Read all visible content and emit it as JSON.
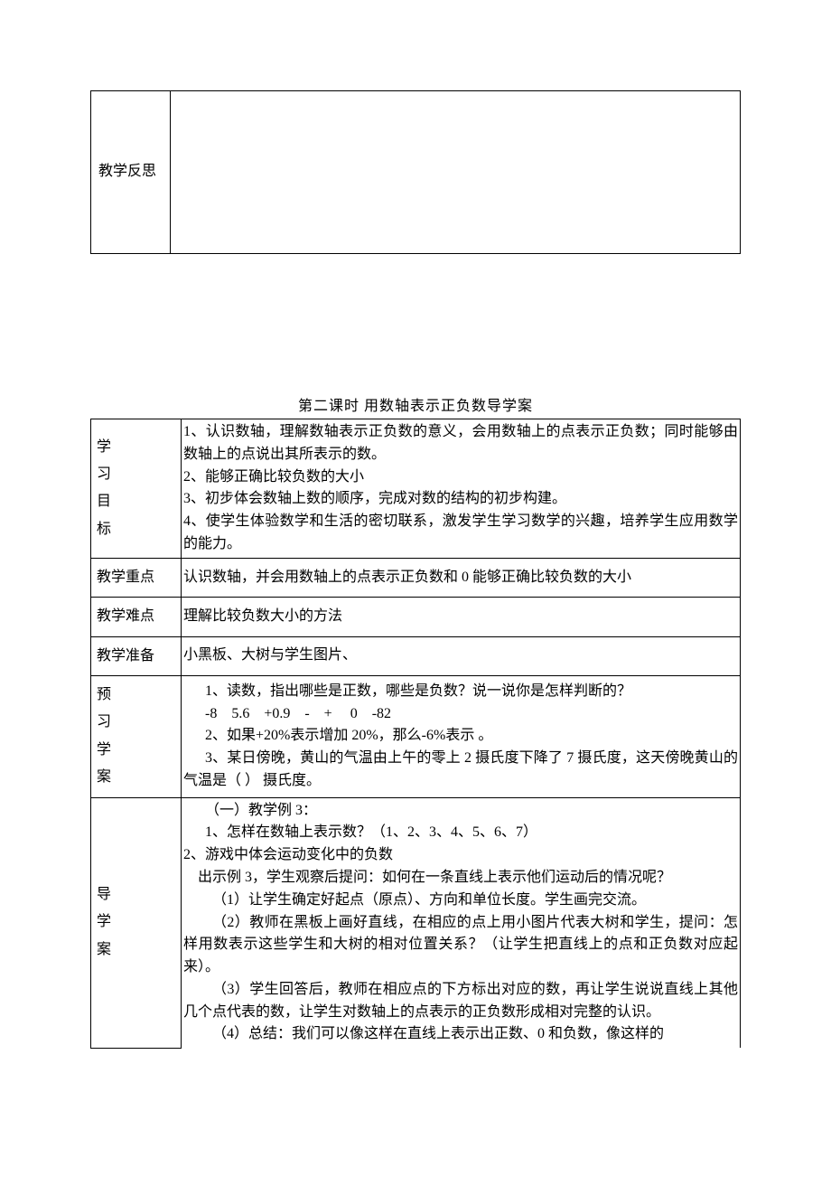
{
  "colors": {
    "text": "#000000",
    "background": "#ffffff",
    "border": "#000000"
  },
  "typography": {
    "body_font": "SimSun, 宋体, serif",
    "body_size_pt": 12,
    "line_height": 1.55
  },
  "topTable": {
    "row1_label": "教学反思",
    "row1_content": ""
  },
  "sectionTitle": "第二课时   用数轴表示正负数导学案",
  "rows": {
    "goals": {
      "label_chars": [
        "学",
        "习",
        "目",
        "标"
      ],
      "items": [
        "1、认识数轴，理解数轴表示正负数的意义，会用数轴上的点表示正负数；同时能够由数轴上的点说出其所表示的数。",
        "2、能够正确比较负数的大小",
        "3、初步体会数轴上数的顺序，完成对数的结构的初步构建。",
        "4、使学生体验数学和生活的密切联系，激发学生学习数学的兴趣，培养学生应用数学的能力。"
      ]
    },
    "keypoint": {
      "label": "教学重点",
      "content_left": "认识数轴，并会用数轴上的点表示正负数和 0",
      "content_right": "               能够正确比较负数的大小"
    },
    "difficulty": {
      "label": "教学难点",
      "content": "理解比较负数大小的方法"
    },
    "prep": {
      "label": "教学准备",
      "content": "小黑板、大树与学生图片、"
    },
    "preview": {
      "label_chars": [
        "预",
        "习",
        "学",
        "案"
      ],
      "l1": "1、读数，指出哪些是正数，哪些是负数？说一说你是怎样判断的？",
      "l1b": "-8    5.6    +0.9    -    +     0    -82",
      "l2": "2、如果+20%表示增加 20%，那么-6%表示           。",
      "l3": "3、某日傍晚，黄山的气温由上午的零上 2 摄氏度下降了 7 摄氏度，这天傍晚黄山的气温是（       ）  摄氏度。"
    },
    "guide": {
      "label_chars": [
        "导",
        "学",
        "案"
      ],
      "p1": "（一）教学例 3：",
      "p2": "1、怎样在数轴上表示数？（1、2、3、4、5、6、7）",
      "p3": "2、游戏中体会运动变化中的负数",
      "p4": "出示例 3，学生观察后提问：如何在一条直线上表示他们运动后的情况呢？",
      "p5": "（1）让学生确定好起点（原点）、方向和单位长度。学生画完交流。",
      "p6": "（2）教师在黑板上画好直线，在相应的点上用小图片代表大树和学生，提问：怎样用数表示这些学生和大树的相对位置关系？（让学生把直线上的点和正负数对应起来）。",
      "p7": "（3）学生回答后，教师在相应点的下方标出对应的数，再让学生说说直线上其他几个点代表的数，让学生对数轴上的点表示的正负数形成相对完整的认识。",
      "p8": "（4）总结：我们可以像这样在直线上表示出正数、0 和负数，像这样的"
    }
  }
}
